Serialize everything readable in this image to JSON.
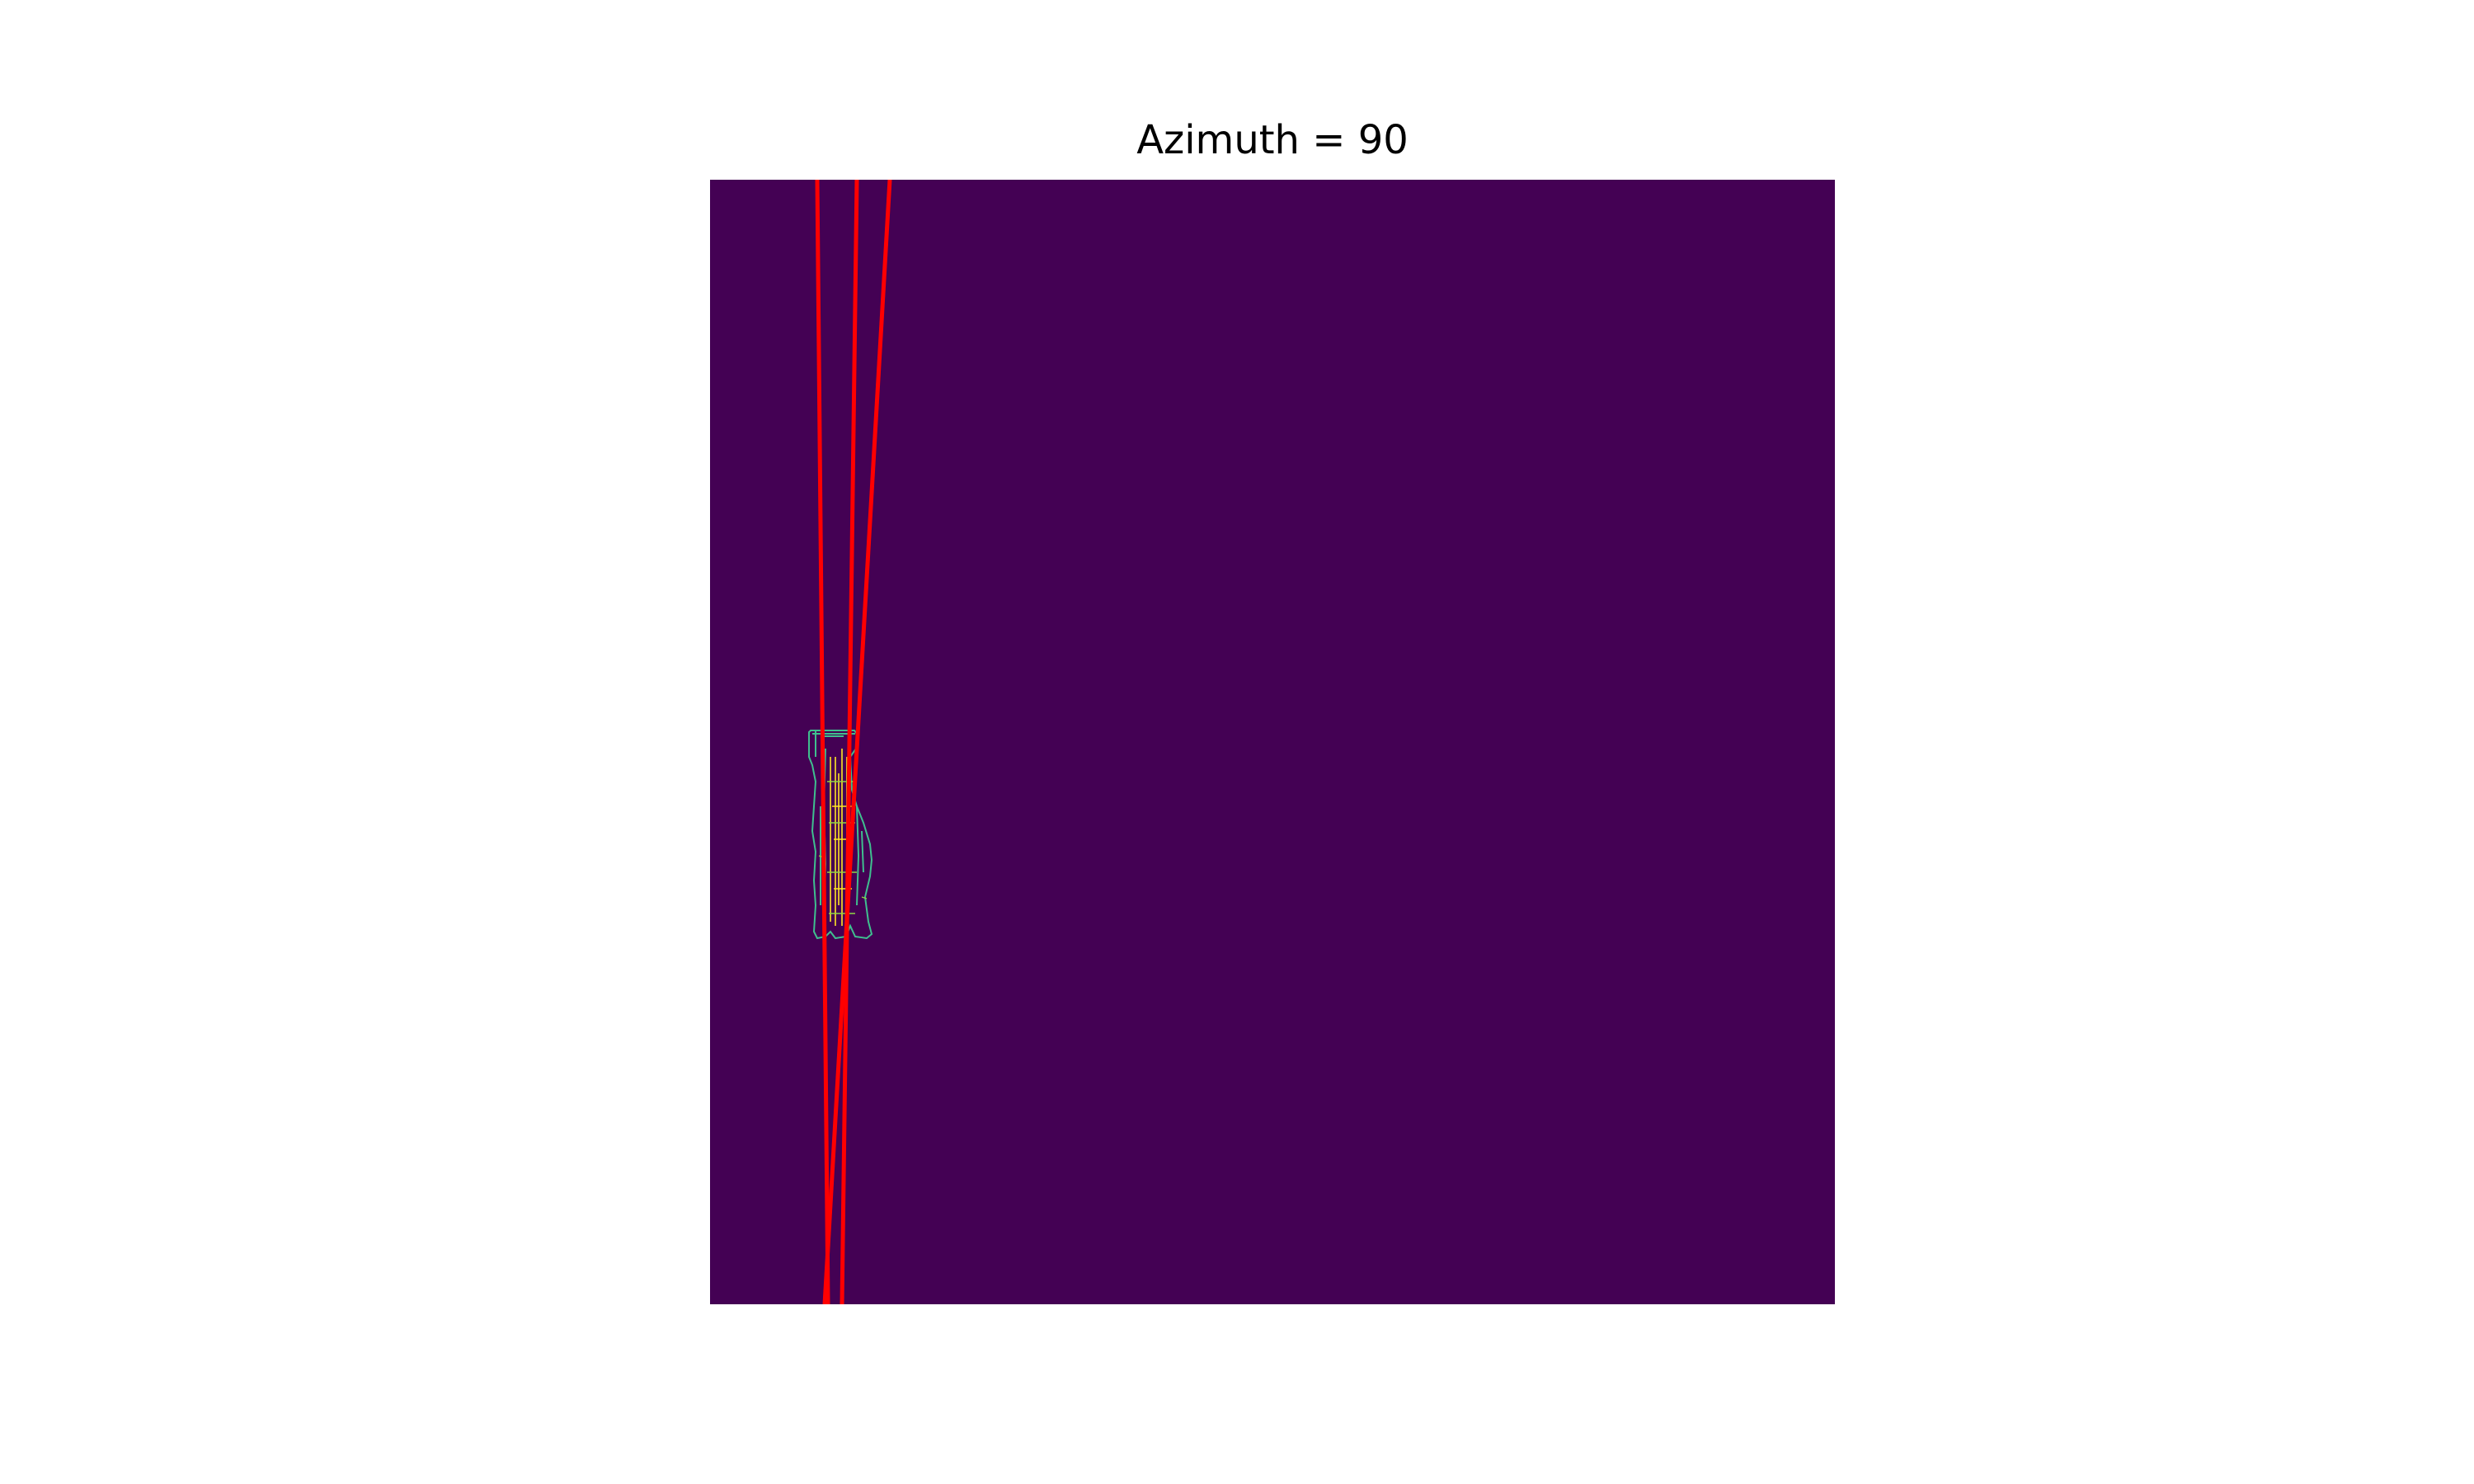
{
  "title": "Azimuth = 90",
  "colors": {
    "background": "#440154",
    "edge_outer": "#3fbf8f",
    "edge_inner": "#fde725",
    "lines": "#ff0000"
  }
}
